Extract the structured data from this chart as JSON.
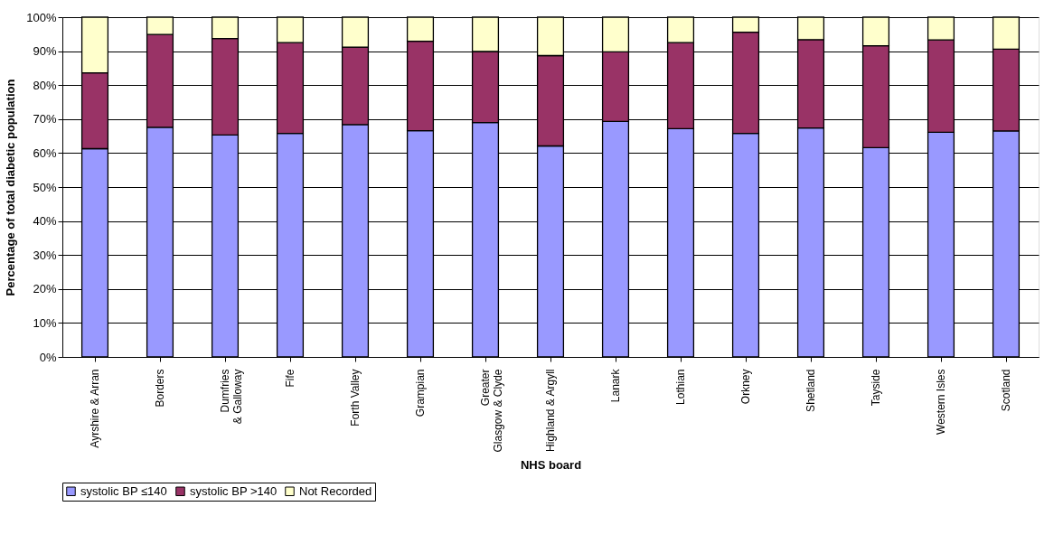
{
  "chart_data": {
    "type": "bar",
    "stacked": true,
    "xlabel": "NHS board",
    "ylabel": "Percentage of total diabetic population",
    "categories": [
      "Ayrshire & Arran",
      "Borders",
      "Dumfries & Galloway",
      "Fife",
      "Forth Valley",
      "Grampian",
      "Greater Glasgow & Clyde",
      "Highland & Argyll",
      "Lanark",
      "Lothian",
      "Orkney",
      "Shetland",
      "Tayside",
      "Western Isles",
      "Scotland"
    ],
    "series": [
      {
        "name": "systolic BP ≤140",
        "color": "#9999ff",
        "values": [
          61.3,
          67.6,
          65.3,
          65.8,
          68.4,
          66.6,
          69.0,
          62.1,
          69.3,
          67.2,
          65.8,
          67.4,
          61.6,
          66.1,
          66.5
        ]
      },
      {
        "name": "systolic BP >140",
        "color": "#993366",
        "values": [
          22.3,
          27.3,
          28.4,
          26.7,
          22.8,
          26.3,
          20.9,
          26.6,
          20.5,
          25.3,
          29.8,
          26.0,
          30.0,
          27.2,
          24.1
        ]
      },
      {
        "name": "Not Recorded",
        "color": "#ffffcc",
        "values": [
          16.4,
          5.1,
          6.3,
          7.5,
          8.8,
          7.1,
          10.1,
          11.3,
          10.2,
          7.5,
          4.4,
          6.6,
          8.4,
          6.7,
          9.4
        ]
      }
    ],
    "ylim": [
      0,
      100
    ],
    "yticks": [
      {
        "value": 0,
        "label": "0%"
      },
      {
        "value": 10,
        "label": "10%"
      },
      {
        "value": 20,
        "label": "20%"
      },
      {
        "value": 30,
        "label": "30%"
      },
      {
        "value": 40,
        "label": "40%"
      },
      {
        "value": 50,
        "label": "50%"
      },
      {
        "value": 60,
        "label": "60%"
      },
      {
        "value": 70,
        "label": "70%"
      },
      {
        "value": 80,
        "label": "80%"
      },
      {
        "value": 90,
        "label": "90%"
      },
      {
        "value": 100,
        "label": "100%"
      }
    ],
    "grid": "y",
    "legend": "bottom"
  }
}
